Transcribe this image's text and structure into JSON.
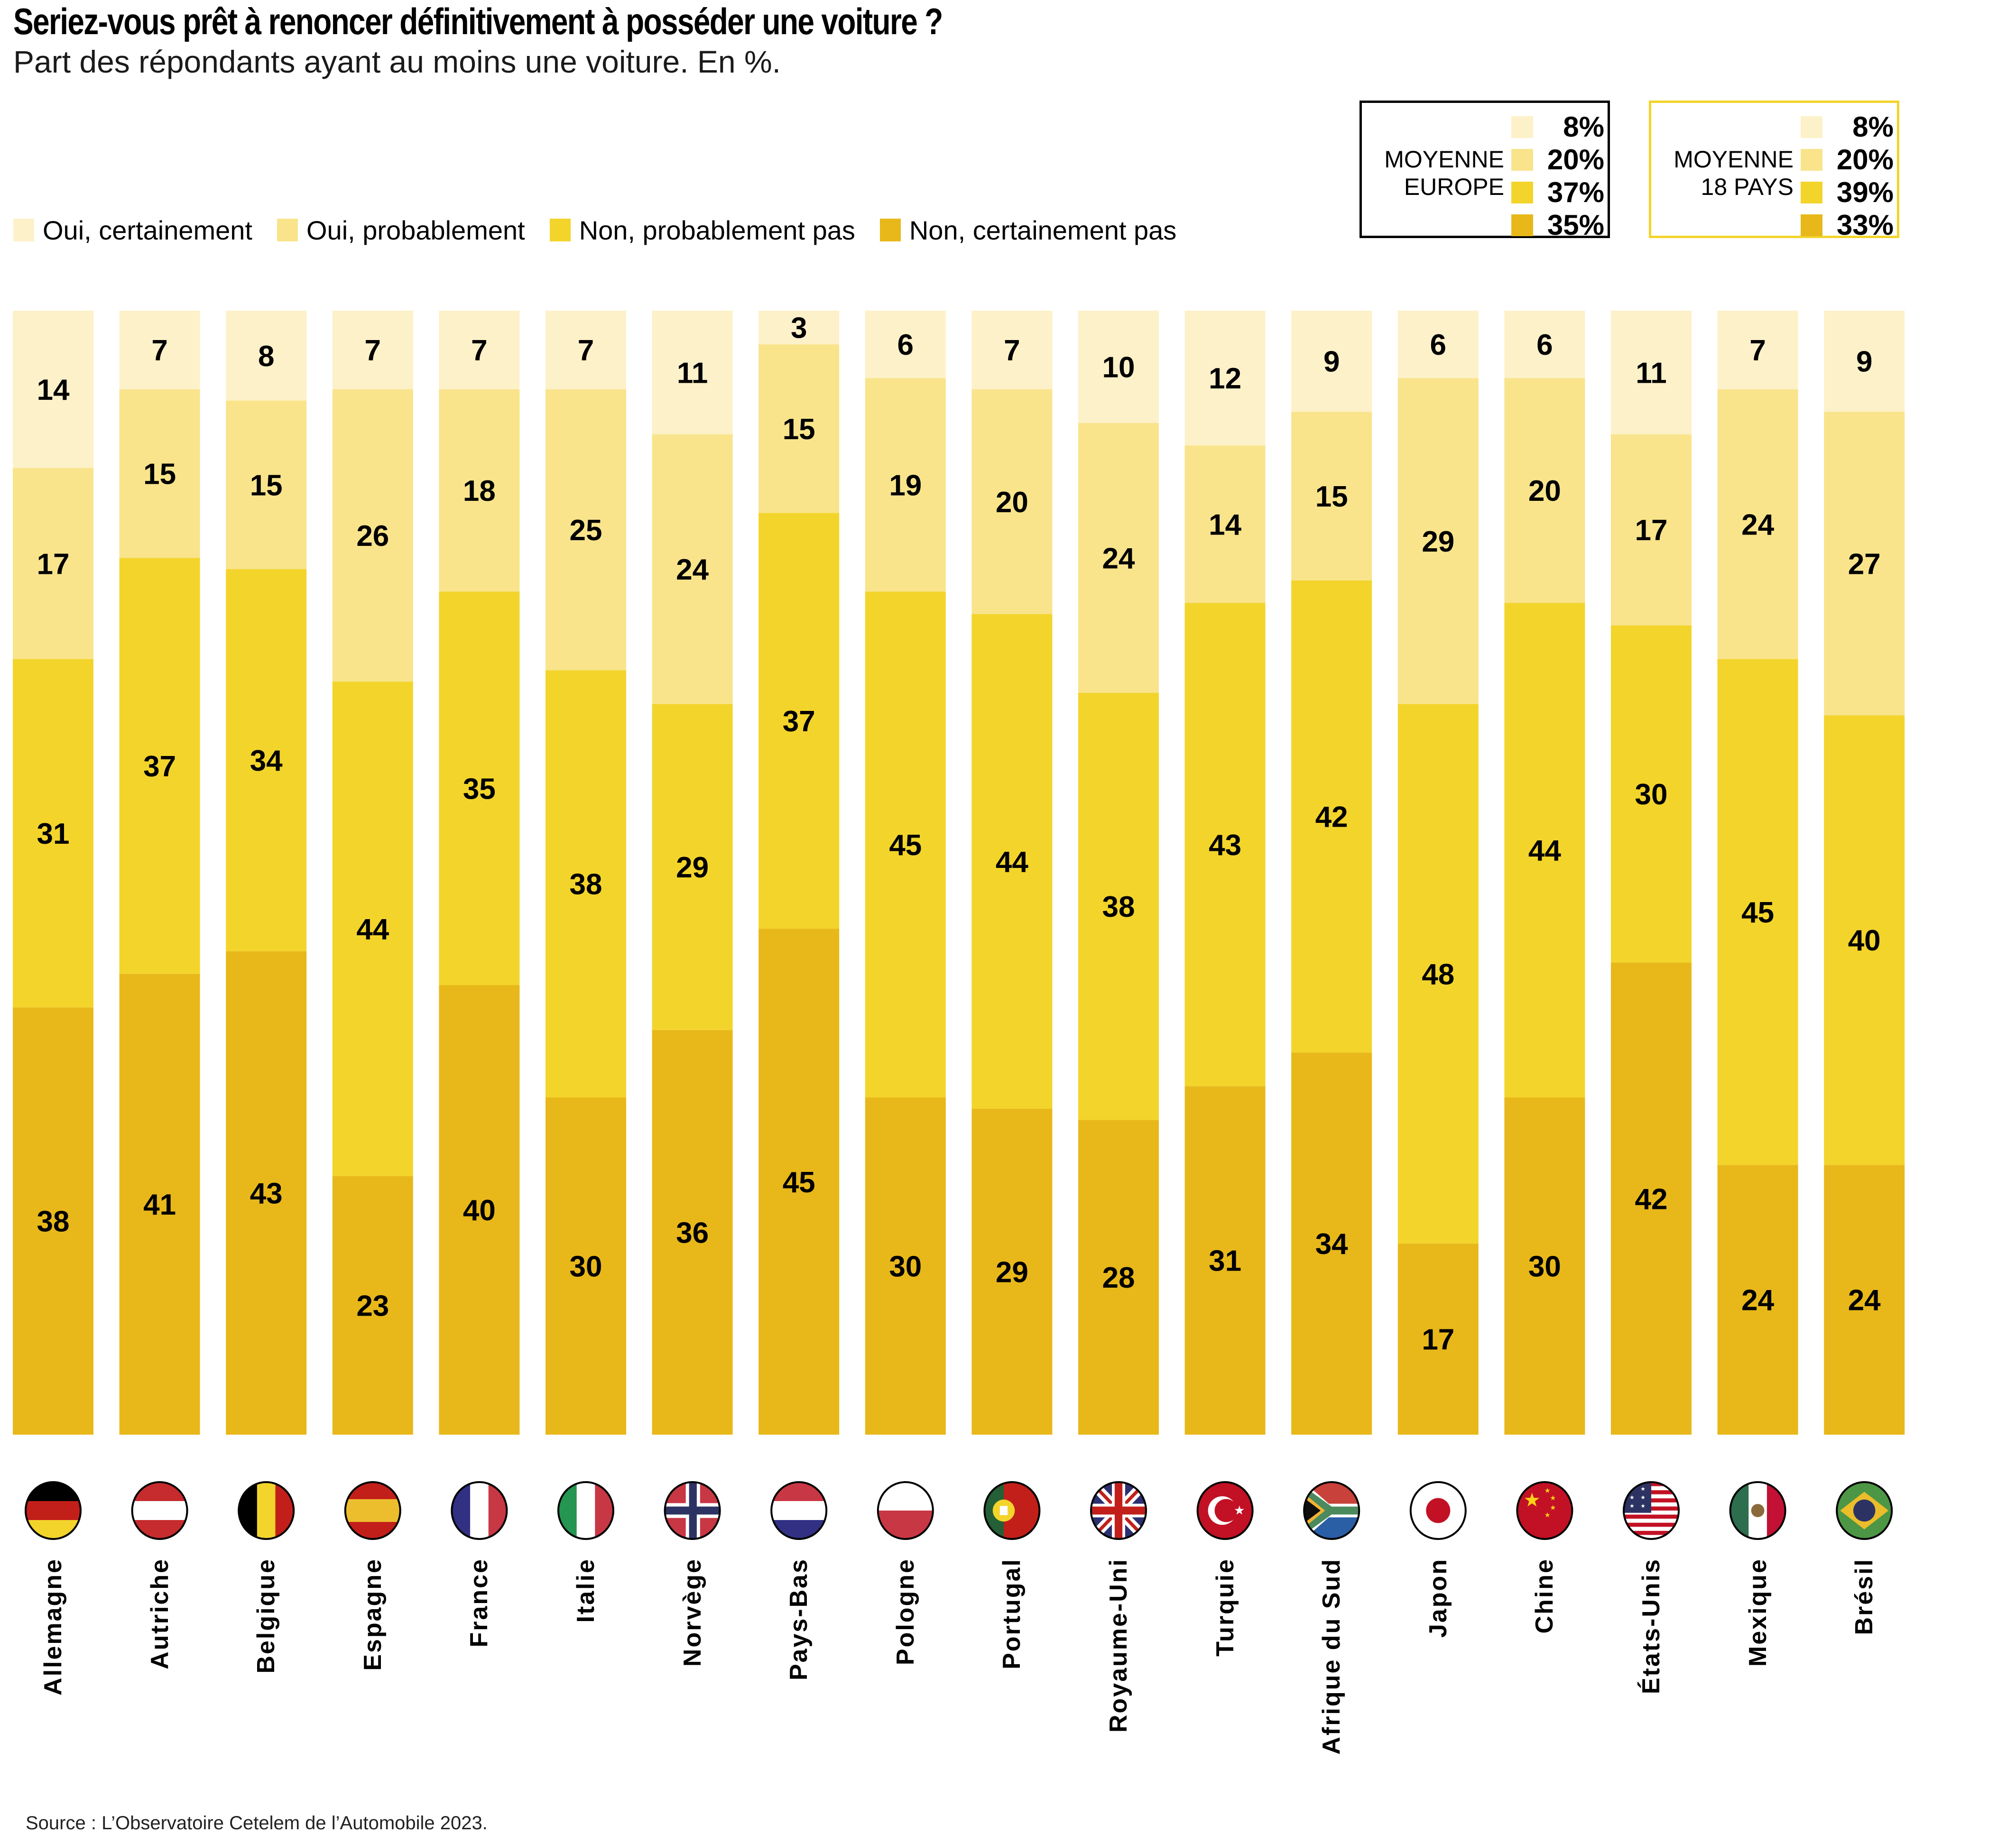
{
  "header": {
    "title": "Seriez-vous prêt à renoncer définitivement à posséder une voiture ?",
    "subtitle": "Part des répondants ayant au moins une voiture. En %."
  },
  "legend": [
    {
      "label": "Oui, certainement",
      "color": "#fdf1c9"
    },
    {
      "label": "Oui, probablement",
      "color": "#f9e48c"
    },
    {
      "label": "Non, probablement pas",
      "color": "#f3d42b"
    },
    {
      "label": "Non, certainement pas",
      "color": "#e8b81a"
    }
  ],
  "averages": [
    {
      "label_line1": "MOYENNE",
      "label_line2": "EUROPE",
      "values": [
        "8%",
        "20%",
        "37%",
        "35%"
      ]
    },
    {
      "label_line1": "MOYENNE",
      "label_line2": "18 PAYS",
      "values": [
        "8%",
        "20%",
        "39%",
        "33%"
      ]
    }
  ],
  "chart_data": {
    "type": "bar",
    "stacked": true,
    "orientation": "vertical",
    "title": "Seriez-vous prêt à renoncer définitivement à posséder une voiture ?",
    "subtitle": "Part des répondants ayant au moins une voiture. En %.",
    "xlabel": "",
    "ylabel": "",
    "ylim": [
      0,
      100
    ],
    "grid": false,
    "legend_position": "top-left",
    "categories": [
      "Allemagne",
      "Autriche",
      "Belgique",
      "Espagne",
      "France",
      "Italie",
      "Norvège",
      "Pays-Bas",
      "Pologne",
      "Portugal",
      "Royaume-Uni",
      "Turquie",
      "Afrique du Sud",
      "Japon",
      "Chine",
      "États-Unis",
      "Mexique",
      "Brésil"
    ],
    "flags": [
      "flag-germany",
      "flag-austria",
      "flag-belgium",
      "flag-spain",
      "flag-france",
      "flag-italy",
      "flag-norway",
      "flag-netherlands",
      "flag-poland",
      "flag-portugal",
      "flag-united-kingdom",
      "flag-turkey",
      "flag-south-africa",
      "flag-japan",
      "flag-china",
      "flag-united-states",
      "flag-mexico",
      "flag-brazil"
    ],
    "series": [
      {
        "name": "Oui, certainement",
        "color": "#fdf1c9",
        "values": [
          14,
          7,
          8,
          7,
          7,
          7,
          11,
          3,
          6,
          7,
          10,
          12,
          9,
          6,
          6,
          11,
          7,
          9
        ]
      },
      {
        "name": "Oui, probablement",
        "color": "#f9e48c",
        "values": [
          17,
          15,
          15,
          26,
          18,
          25,
          24,
          15,
          19,
          20,
          24,
          14,
          15,
          29,
          20,
          17,
          24,
          27
        ]
      },
      {
        "name": "Non, probablement pas",
        "color": "#f3d42b",
        "values": [
          31,
          37,
          34,
          44,
          35,
          38,
          29,
          37,
          45,
          44,
          38,
          43,
          42,
          48,
          44,
          30,
          45,
          40
        ]
      },
      {
        "name": "Non, certainement pas",
        "color": "#e8b81a",
        "values": [
          38,
          41,
          43,
          23,
          40,
          30,
          36,
          45,
          30,
          29,
          28,
          31,
          34,
          17,
          30,
          42,
          24,
          24
        ]
      }
    ]
  },
  "source": "Source : L’Observatoire Cetelem de l’Automobile 2023."
}
